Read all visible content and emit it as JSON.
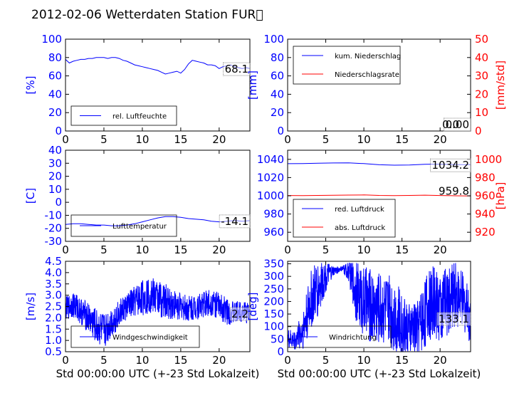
{
  "title": "2012-02-06 Wetterdaten Station FUR\u0000",
  "colors": {
    "primary": "#0000ff",
    "secondary": "#ff0000",
    "light_blue": "#8080ff"
  },
  "chart_data": [
    {
      "id": "humidity",
      "type": "line",
      "xlim": [
        0,
        24
      ],
      "xticks": [
        0,
        5,
        10,
        15,
        20
      ],
      "ylim": [
        0,
        100
      ],
      "yticks": [
        0,
        20,
        40,
        60,
        80,
        100
      ],
      "ylabel": "[%]",
      "current_value": "68.1",
      "series": [
        {
          "name": "rel. Luftfeuchte",
          "color": "#0000ff",
          "x": [
            0,
            0.5,
            1,
            1.5,
            2,
            2.5,
            3,
            3.5,
            4,
            4.5,
            5,
            5.5,
            6,
            6.5,
            7,
            7.5,
            8,
            8.5,
            9,
            9.5,
            10,
            10.5,
            11,
            11.5,
            12,
            12.5,
            13,
            13.5,
            14,
            14.5,
            15,
            15.5,
            16,
            16.5,
            17,
            17.5,
            18,
            18.5,
            19,
            19.5,
            20,
            20.5,
            21,
            21.5,
            22,
            22.5,
            23,
            23.5,
            24
          ],
          "y": [
            78,
            74,
            76,
            77,
            78,
            78,
            79,
            79,
            80,
            80,
            80,
            79,
            80,
            80,
            79,
            77,
            76,
            74,
            72,
            71,
            70,
            69,
            68,
            67,
            66,
            64,
            62,
            63,
            64,
            65,
            63,
            67,
            73,
            77,
            76,
            75,
            74,
            72,
            72,
            71,
            68,
            70,
            71,
            72,
            70,
            69,
            68,
            69,
            68
          ]
        }
      ]
    },
    {
      "id": "precipitation",
      "type": "line",
      "xlim": [
        0,
        24
      ],
      "xticks": [
        0,
        5,
        10,
        15,
        20
      ],
      "ylim": [
        0,
        100
      ],
      "yticks": [
        0,
        20,
        40,
        60,
        80,
        100
      ],
      "ylabel": "[mm]",
      "ylim_right": [
        0,
        50
      ],
      "yticks_right": [
        0,
        10,
        20,
        30,
        40,
        50
      ],
      "ylabel_right": "[mm/std]",
      "current_value": "0.00",
      "current_value_right": "0.0",
      "series": [
        {
          "name": "kum. Niederschlag",
          "color": "#0000ff",
          "x": [
            0,
            24
          ],
          "y": [
            0,
            0
          ],
          "axis": "left"
        },
        {
          "name": "Niederschlagsrate",
          "color": "#ff0000",
          "x": [
            0,
            24
          ],
          "y": [
            0,
            0
          ],
          "axis": "right"
        }
      ]
    },
    {
      "id": "temperature",
      "type": "line",
      "xlim": [
        0,
        24
      ],
      "xticks": [
        0,
        5,
        10,
        15,
        20
      ],
      "ylim": [
        -30,
        40
      ],
      "yticks": [
        -30,
        -20,
        -10,
        0,
        10,
        20,
        30,
        40
      ],
      "ylabel": "[C]",
      "current_value": "-14.1",
      "series": [
        {
          "name": "Lufttemperatur",
          "color": "#0000ff",
          "x": [
            0,
            1,
            2,
            3,
            4,
            5,
            6,
            7,
            8,
            9,
            10,
            11,
            12,
            13,
            14,
            15,
            16,
            17,
            18,
            19,
            20,
            21,
            22,
            23,
            24
          ],
          "y": [
            -17,
            -16.5,
            -16.5,
            -17,
            -17.5,
            -17.5,
            -18,
            -18,
            -17.5,
            -16.5,
            -15,
            -13.5,
            -12,
            -11,
            -11,
            -11.5,
            -12.5,
            -13,
            -13.5,
            -14.5,
            -15,
            -14.5,
            -14,
            -14.5,
            -14.1
          ]
        }
      ]
    },
    {
      "id": "pressure",
      "type": "line",
      "xlim": [
        0,
        24
      ],
      "xticks": [
        0,
        5,
        10,
        15,
        20
      ],
      "ylim": [
        950,
        1050
      ],
      "yticks": [
        960,
        980,
        1000,
        1020,
        1040
      ],
      "ylim_right": [
        910,
        1010
      ],
      "yticks_right": [
        920,
        940,
        960,
        980,
        1000
      ],
      "ylabel_right": "[hPa]",
      "current_value": "1034.2",
      "current_value_right": "959.8",
      "series": [
        {
          "name": "red. Luftdruck",
          "color": "#0000ff",
          "axis": "left",
          "x": [
            0,
            2,
            4,
            6,
            8,
            10,
            12,
            14,
            16,
            18,
            20,
            22,
            24
          ],
          "y": [
            1035.2,
            1035.4,
            1035.7,
            1036,
            1036.2,
            1035.3,
            1034.1,
            1033.6,
            1033.8,
            1034.5,
            1034.8,
            1034.3,
            1034.2
          ]
        },
        {
          "name": "abs. Luftdruck",
          "color": "#ff0000",
          "axis": "right",
          "x": [
            0,
            2,
            4,
            6,
            8,
            10,
            12,
            14,
            16,
            18,
            20,
            22,
            24
          ],
          "y": [
            960.3,
            960.2,
            960.4,
            960.6,
            960.8,
            960.9,
            960.4,
            960.2,
            960.4,
            960.7,
            960.3,
            960,
            959.8
          ]
        }
      ]
    },
    {
      "id": "windspeed",
      "type": "line",
      "xlim": [
        0,
        24
      ],
      "xticks": [
        0,
        5,
        10,
        15,
        20
      ],
      "ylim": [
        0.5,
        4.5
      ],
      "yticks": [
        0.5,
        1.0,
        1.5,
        2.0,
        2.5,
        3.0,
        3.5,
        4.0,
        4.5
      ],
      "ylabel": "[m/s]",
      "xlabel": "Std 00:00:00 UTC (+-23 Std Lokalzeit)",
      "current_value": "2.2",
      "series": [
        {
          "name": "Windgeschwindigkeit",
          "color": "#0000ff",
          "noisy": true,
          "x": [
            0,
            1,
            2,
            3,
            4,
            5,
            6,
            7,
            8,
            9,
            10,
            11,
            12,
            13,
            14,
            15,
            16,
            17,
            18,
            19,
            20,
            21,
            22,
            23,
            24
          ],
          "y": [
            2.4,
            2.6,
            2.3,
            2.0,
            1.6,
            1.4,
            1.8,
            2.2,
            2.5,
            2.7,
            2.9,
            3.0,
            2.9,
            2.7,
            2.6,
            2.5,
            2.4,
            2.5,
            2.6,
            2.7,
            2.5,
            2.3,
            2.2,
            2.3,
            2.2
          ],
          "amp": [
            0.5,
            0.6,
            0.6,
            0.7,
            0.8,
            0.8,
            0.7,
            0.6,
            0.6,
            0.7,
            0.8,
            0.8,
            0.8,
            0.8,
            0.7,
            0.6,
            0.6,
            0.6,
            0.6,
            0.6,
            0.6,
            0.6,
            0.5,
            0.5,
            0.5
          ]
        }
      ]
    },
    {
      "id": "winddirection",
      "type": "line",
      "xlim": [
        0,
        24
      ],
      "xticks": [
        0,
        5,
        10,
        15,
        20
      ],
      "ylim": [
        0,
        360
      ],
      "yticks": [
        0,
        50,
        100,
        150,
        200,
        250,
        300,
        350
      ],
      "ylabel": "[deg]",
      "xlabel": "Std 00:00:00 UTC (+-23 Std Lokalzeit)",
      "current_value": "133.1",
      "series": [
        {
          "name": "Windrichtung",
          "color": "#0000ff",
          "noisy": true,
          "x": [
            0,
            1,
            2,
            3,
            4,
            5,
            6,
            7,
            8,
            9,
            10,
            11,
            12,
            13,
            14,
            15,
            16,
            17,
            18,
            19,
            20,
            21,
            22,
            23,
            24
          ],
          "y": [
            50,
            45,
            90,
            200,
            250,
            300,
            320,
            330,
            320,
            240,
            200,
            180,
            180,
            170,
            150,
            110,
            90,
            100,
            160,
            200,
            180,
            200,
            230,
            200,
            133
          ],
          "amp": [
            40,
            40,
            80,
            120,
            120,
            60,
            20,
            10,
            40,
            120,
            140,
            150,
            150,
            140,
            150,
            130,
            100,
            110,
            150,
            140,
            150,
            140,
            130,
            120,
            100
          ]
        }
      ]
    }
  ]
}
